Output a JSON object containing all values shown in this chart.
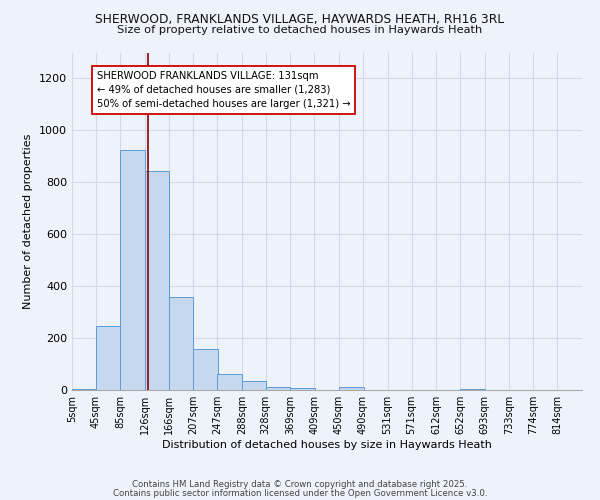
{
  "title1": "SHERWOOD, FRANKLANDS VILLAGE, HAYWARDS HEATH, RH16 3RL",
  "title2": "Size of property relative to detached houses in Haywards Heath",
  "xlabel": "Distribution of detached houses by size in Haywards Heath",
  "ylabel": "Number of detached properties",
  "bar_labels": [
    "5sqm",
    "45sqm",
    "85sqm",
    "126sqm",
    "166sqm",
    "207sqm",
    "247sqm",
    "288sqm",
    "328sqm",
    "369sqm",
    "409sqm",
    "450sqm",
    "490sqm",
    "531sqm",
    "571sqm",
    "612sqm",
    "652sqm",
    "693sqm",
    "733sqm",
    "774sqm",
    "814sqm"
  ],
  "bar_values": [
    5,
    247,
    924,
    845,
    357,
    157,
    62,
    33,
    12,
    8,
    0,
    10,
    0,
    0,
    0,
    0,
    5,
    0,
    0,
    0,
    0
  ],
  "bar_color": "#c5d8ed",
  "bar_edgecolor": "#5b9bd5",
  "ylim": [
    0,
    1300
  ],
  "yticks": [
    0,
    200,
    400,
    600,
    800,
    1000,
    1200
  ],
  "property_line_color": "#8b0000",
  "annotation_text": "SHERWOOD FRANKLANDS VILLAGE: 131sqm\n← 49% of detached houses are smaller (1,283)\n50% of semi-detached houses are larger (1,321) →",
  "annotation_box_color": "#ffffff",
  "annotation_box_edgecolor": "#cc0000",
  "footer1": "Contains HM Land Registry data © Crown copyright and database right 2025.",
  "footer2": "Contains public sector information licensed under the Open Government Licence v3.0.",
  "bg_color": "#eef2fa",
  "grid_color": "#d0daea",
  "bin_width": 41
}
